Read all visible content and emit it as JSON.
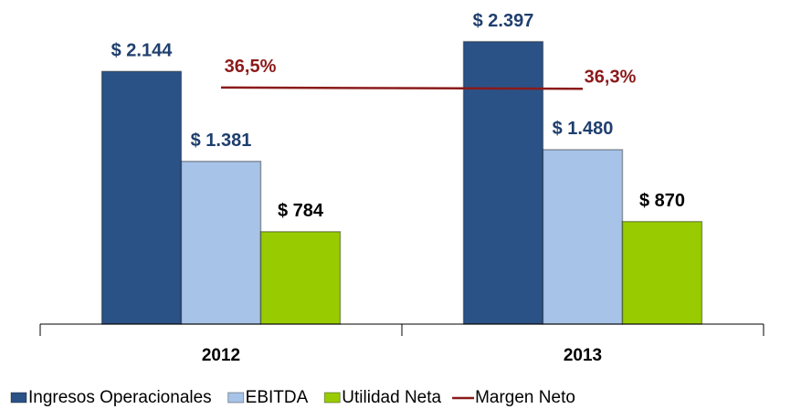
{
  "chart_data": {
    "type": "bar",
    "categories": [
      "2012",
      "2013"
    ],
    "ylim": [
      0,
      2750
    ],
    "y2lim": [
      0,
      50
    ],
    "series": [
      {
        "name": "Ingresos Operacionales",
        "color": "#2b5287",
        "values": [
          2144,
          2397
        ],
        "value_labels": [
          "$ 2.144",
          "$ 2.397"
        ]
      },
      {
        "name": "EBITDA",
        "color": "#a7c3e7",
        "values": [
          1381,
          1480
        ],
        "value_labels": [
          "$ 1.381",
          "$ 1.480"
        ]
      },
      {
        "name": "Utilidad Neta",
        "color": "#99cc00",
        "values": [
          784,
          870
        ],
        "value_labels": [
          "$ 784",
          "$ 870"
        ]
      },
      {
        "name": "Margen Neto",
        "type": "line",
        "axis": "y2",
        "color": "#8b1a1a",
        "values": [
          36.5,
          36.3
        ],
        "value_labels": [
          "36,5%",
          "36,3%"
        ]
      }
    ]
  }
}
